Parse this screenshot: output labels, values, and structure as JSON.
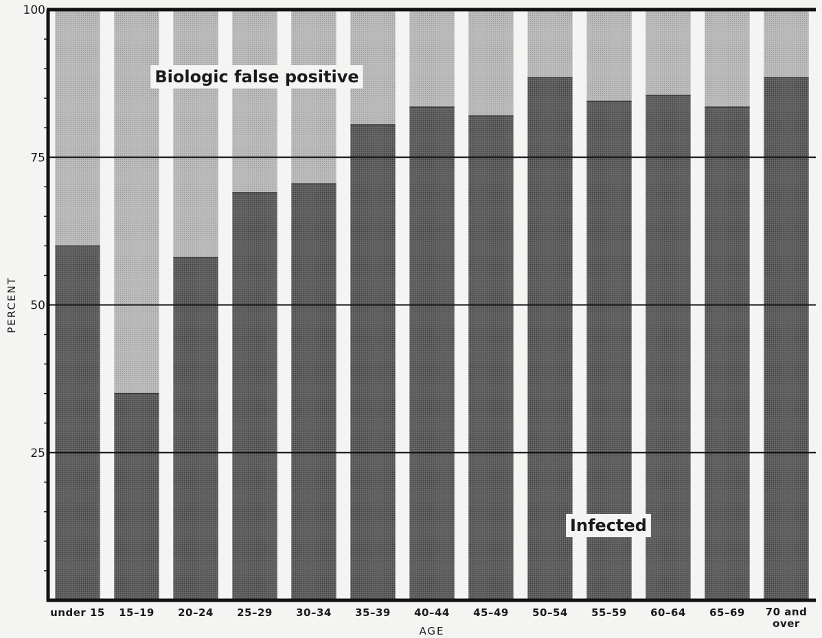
{
  "chart_data": {
    "type": "bar",
    "stacked": true,
    "categories": [
      "under 15",
      "15–19",
      "20–24",
      "25–29",
      "30–34",
      "35–39",
      "40–44",
      "45–49",
      "50–54",
      "55–59",
      "60–64",
      "65–69",
      "70 and\nover"
    ],
    "series": [
      {
        "name": "Infected",
        "values": [
          60,
          35,
          58,
          69,
          70.5,
          80.5,
          83.5,
          82,
          88.5,
          84.5,
          85.5,
          83.5,
          88.5
        ]
      },
      {
        "name": "Biologic false positive",
        "values": [
          40,
          65,
          42,
          31,
          29.5,
          19.5,
          16.5,
          18,
          11.5,
          15.5,
          14.5,
          16.5,
          11.5
        ]
      }
    ],
    "xlabel": "AGE",
    "ylabel": "PERCENT",
    "ylim": [
      0,
      100
    ],
    "yticks": [
      25,
      50,
      75,
      100
    ],
    "grid": true,
    "colors": {
      "infected": "#595959",
      "false_positive": "#aaaaaa",
      "background": "#f4f4f2",
      "gridline": "#111111"
    }
  }
}
